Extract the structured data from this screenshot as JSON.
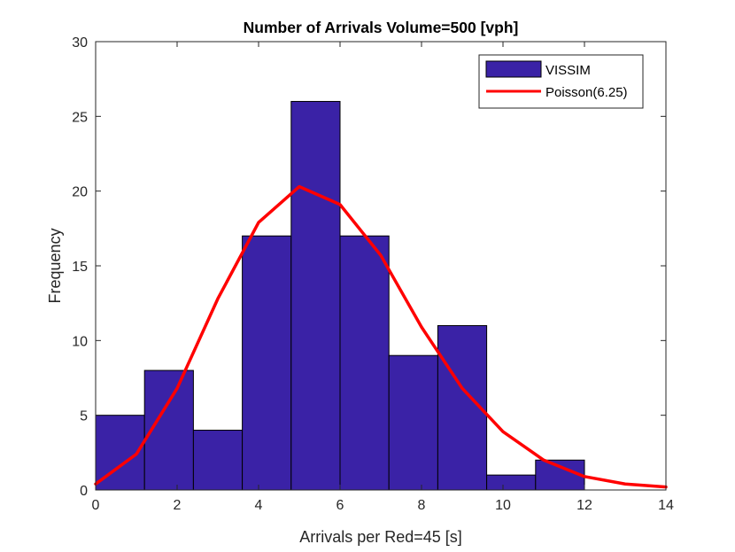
{
  "chart_data": {
    "type": "bar",
    "title": "Number of Arrivals Volume=500 [vph]",
    "xlabel": "Arrivals per Red=45 [s]",
    "ylabel": "Frequency",
    "xlim": [
      0,
      14
    ],
    "ylim": [
      0,
      30
    ],
    "xticks": [
      0,
      2,
      4,
      6,
      8,
      10,
      12,
      14
    ],
    "yticks": [
      0,
      5,
      10,
      15,
      20,
      25,
      30
    ],
    "grid": false,
    "legend_position": "top-right",
    "histogram": {
      "name": "VISSIM",
      "color": "#3A22A6",
      "bin_edges": [
        0,
        1.2,
        2.4,
        3.6,
        4.8,
        6.0,
        7.2,
        8.4,
        9.6,
        10.8,
        12.0
      ],
      "counts": [
        5,
        8,
        4,
        17,
        26,
        17,
        9,
        11,
        1,
        2
      ]
    },
    "line": {
      "name": "Poisson(6.25)",
      "color": "#FF0000",
      "x": [
        0,
        1,
        2,
        3,
        4,
        5,
        6,
        7,
        8,
        9,
        10,
        11,
        12,
        13,
        14
      ],
      "y": [
        0.4,
        2.4,
        6.8,
        12.8,
        17.9,
        20.3,
        19.1,
        15.7,
        10.9,
        6.8,
        3.9,
        2.0,
        0.9,
        0.4,
        0.2
      ]
    }
  }
}
